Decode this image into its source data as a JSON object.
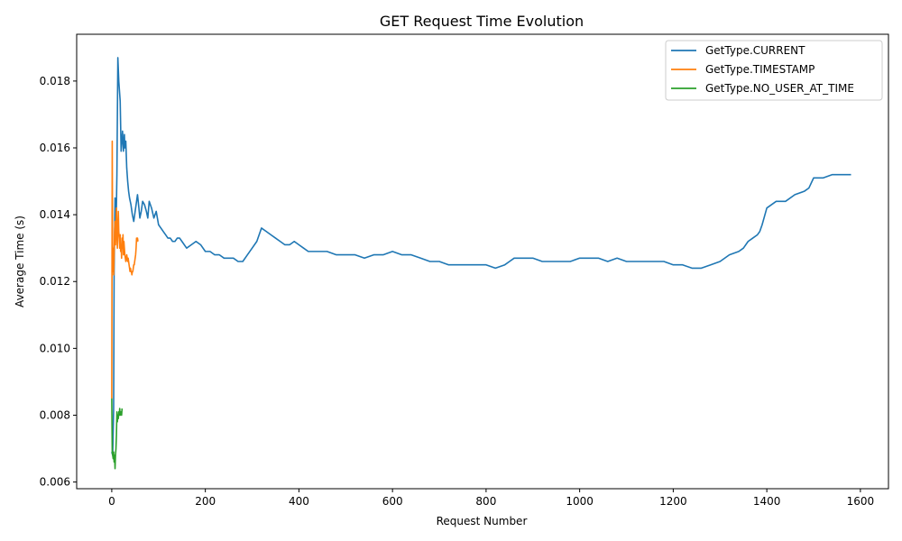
{
  "chart_data": {
    "type": "line",
    "title": "GET Request Time Evolution",
    "xlabel": "Request Number",
    "ylabel": "Average Time (s)",
    "xlim": [
      -75,
      1660
    ],
    "ylim": [
      0.0058,
      0.0194
    ],
    "xticks": [
      0,
      200,
      400,
      600,
      800,
      1000,
      1200,
      1400,
      1600
    ],
    "xtick_labels": [
      "0",
      "200",
      "400",
      "600",
      "800",
      "1000",
      "1200",
      "1400",
      "1600"
    ],
    "yticks": [
      0.006,
      0.008,
      0.01,
      0.012,
      0.014,
      0.016,
      0.018
    ],
    "ytick_labels": [
      "0.006",
      "0.008",
      "0.010",
      "0.012",
      "0.014",
      "0.016",
      "0.018"
    ],
    "grid": false,
    "legend_position": "top-right",
    "series": [
      {
        "name": "GetType.CURRENT",
        "color": "#1f77b4",
        "x": [
          0,
          2,
          4,
          5,
          7,
          9,
          11,
          13,
          15,
          18,
          20,
          23,
          25,
          27,
          28,
          30,
          32,
          34,
          36,
          38,
          41,
          44,
          47,
          50,
          55,
          58,
          60,
          63,
          66,
          70,
          74,
          77,
          80,
          85,
          90,
          95,
          100,
          105,
          110,
          115,
          120,
          125,
          130,
          135,
          140,
          145,
          150,
          160,
          170,
          180,
          190,
          200,
          210,
          220,
          230,
          240,
          250,
          260,
          270,
          280,
          290,
          300,
          310,
          320,
          330,
          340,
          350,
          360,
          370,
          380,
          390,
          400,
          410,
          420,
          430,
          440,
          460,
          480,
          500,
          520,
          540,
          560,
          580,
          600,
          620,
          640,
          660,
          680,
          700,
          720,
          740,
          760,
          780,
          800,
          820,
          840,
          850,
          860,
          870,
          880,
          900,
          920,
          940,
          960,
          980,
          1000,
          1020,
          1040,
          1060,
          1080,
          1100,
          1120,
          1140,
          1160,
          1180,
          1200,
          1220,
          1240,
          1260,
          1280,
          1300,
          1320,
          1340,
          1350,
          1360,
          1370,
          1380,
          1385,
          1390,
          1400,
          1420,
          1440,
          1460,
          1480,
          1490,
          1500,
          1520,
          1540,
          1560,
          1580
        ],
        "values": [
          0.0069,
          0.0068,
          0.0082,
          0.0123,
          0.0145,
          0.0134,
          0.0152,
          0.0187,
          0.018,
          0.0174,
          0.0159,
          0.0165,
          0.0159,
          0.0164,
          0.016,
          0.0162,
          0.0154,
          0.015,
          0.0147,
          0.0145,
          0.0143,
          0.014,
          0.0138,
          0.0141,
          0.0146,
          0.0142,
          0.0139,
          0.0141,
          0.0144,
          0.0143,
          0.0141,
          0.0139,
          0.0144,
          0.0142,
          0.0139,
          0.0141,
          0.0137,
          0.0136,
          0.0135,
          0.0134,
          0.0133,
          0.0133,
          0.0132,
          0.0132,
          0.0133,
          0.0133,
          0.0132,
          0.013,
          0.0131,
          0.0132,
          0.0131,
          0.0129,
          0.0129,
          0.0128,
          0.0128,
          0.0127,
          0.0127,
          0.0127,
          0.0126,
          0.0126,
          0.0128,
          0.013,
          0.0132,
          0.0136,
          0.0135,
          0.0134,
          0.0133,
          0.0132,
          0.0131,
          0.0131,
          0.0132,
          0.0131,
          0.013,
          0.0129,
          0.0129,
          0.0129,
          0.0129,
          0.0128,
          0.0128,
          0.0128,
          0.0127,
          0.0128,
          0.0128,
          0.0129,
          0.0128,
          0.0128,
          0.0127,
          0.0126,
          0.0126,
          0.0125,
          0.0125,
          0.0125,
          0.0125,
          0.0125,
          0.0124,
          0.0125,
          0.0126,
          0.0127,
          0.0127,
          0.0127,
          0.0127,
          0.0126,
          0.0126,
          0.0126,
          0.0126,
          0.0127,
          0.0127,
          0.0127,
          0.0126,
          0.0127,
          0.0126,
          0.0126,
          0.0126,
          0.0126,
          0.0126,
          0.0125,
          0.0125,
          0.0124,
          0.0124,
          0.0125,
          0.0126,
          0.0128,
          0.0129,
          0.013,
          0.0132,
          0.0133,
          0.0134,
          0.0135,
          0.0137,
          0.0142,
          0.0144,
          0.0144,
          0.0146,
          0.0147,
          0.0148,
          0.0151,
          0.0151,
          0.0152,
          0.0152,
          0.0152
        ]
      },
      {
        "name": "GetType.TIMESTAMP",
        "color": "#ff7f0e",
        "x": [
          0,
          1,
          2,
          3,
          4,
          5,
          6,
          7,
          8,
          9,
          10,
          11,
          12,
          13,
          14,
          15,
          16,
          17,
          18,
          19,
          20,
          21,
          22,
          23,
          24,
          25,
          26,
          27,
          28,
          29,
          30,
          31,
          32,
          33,
          34,
          35,
          36,
          37,
          38,
          39,
          40,
          41,
          42,
          43,
          44,
          45,
          46,
          47,
          48,
          49,
          50,
          51,
          52,
          53,
          54,
          55,
          56
        ],
        "values": [
          0.0085,
          0.0162,
          0.0123,
          0.013,
          0.0122,
          0.0128,
          0.0135,
          0.0138,
          0.0131,
          0.0137,
          0.0142,
          0.0134,
          0.013,
          0.0136,
          0.0141,
          0.0135,
          0.0133,
          0.013,
          0.0134,
          0.0129,
          0.0131,
          0.0127,
          0.0133,
          0.013,
          0.0134,
          0.0128,
          0.0132,
          0.013,
          0.0128,
          0.0127,
          0.0126,
          0.0127,
          0.0128,
          0.0127,
          0.0126,
          0.0127,
          0.0126,
          0.0125,
          0.0124,
          0.0123,
          0.0124,
          0.0123,
          0.0123,
          0.0122,
          0.0123,
          0.0123,
          0.0124,
          0.0125,
          0.0125,
          0.0126,
          0.0127,
          0.0128,
          0.013,
          0.0133,
          0.0132,
          0.0133,
          0.0132
        ]
      },
      {
        "name": "GetType.NO_USER_AT_TIME",
        "color": "#2ca02c",
        "x": [
          0,
          1,
          2,
          3,
          4,
          5,
          6,
          7,
          8,
          9,
          10,
          11,
          12,
          13,
          14,
          15,
          16,
          17,
          18,
          19,
          20,
          21,
          22
        ],
        "values": [
          0.0085,
          0.0069,
          0.0068,
          0.0067,
          0.0069,
          0.0066,
          0.0068,
          0.0064,
          0.0068,
          0.007,
          0.0074,
          0.0081,
          0.0078,
          0.008,
          0.0079,
          0.0081,
          0.008,
          0.0082,
          0.008,
          0.0081,
          0.0081,
          0.008,
          0.0082
        ]
      }
    ]
  }
}
